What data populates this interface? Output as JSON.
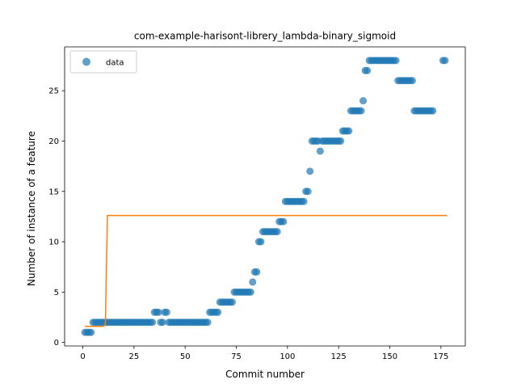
{
  "chart_data": {
    "type": "scatter",
    "title": "com-example-harisont-librery_lambda-binary_sigmoid",
    "xlabel": "Commit number",
    "ylabel": "Number of instance of a feature",
    "xlim": [
      -8.9,
      186.9
    ],
    "ylim": [
      -0.35,
      29.35
    ],
    "xticks": [
      0,
      25,
      50,
      75,
      100,
      125,
      150,
      175
    ],
    "yticks": [
      0,
      5,
      10,
      15,
      20,
      25
    ],
    "grid": false,
    "legend": {
      "position": "top-left",
      "entries": [
        "data"
      ]
    },
    "colors": {
      "scatter": "#1f77b4",
      "fit": "#ff7f0e"
    },
    "series": [
      {
        "name": "data",
        "kind": "scatter",
        "points": [
          [
            1,
            1
          ],
          [
            2,
            1
          ],
          [
            3,
            1
          ],
          [
            4,
            1
          ],
          [
            5,
            2
          ],
          [
            6,
            2
          ],
          [
            7,
            2
          ],
          [
            8,
            2
          ],
          [
            9,
            2
          ],
          [
            10,
            2
          ],
          [
            11,
            2
          ],
          [
            12,
            2
          ],
          [
            13,
            2
          ],
          [
            14,
            2
          ],
          [
            15,
            2
          ],
          [
            16,
            2
          ],
          [
            17,
            2
          ],
          [
            18,
            2
          ],
          [
            19,
            2
          ],
          [
            20,
            2
          ],
          [
            21,
            2
          ],
          [
            22,
            2
          ],
          [
            23,
            2
          ],
          [
            24,
            2
          ],
          [
            25,
            2
          ],
          [
            26,
            2
          ],
          [
            27,
            2
          ],
          [
            28,
            2
          ],
          [
            29,
            2
          ],
          [
            30,
            2
          ],
          [
            31,
            2
          ],
          [
            32,
            2
          ],
          [
            33,
            2
          ],
          [
            34,
            2
          ],
          [
            35,
            3
          ],
          [
            36,
            3
          ],
          [
            37,
            3
          ],
          [
            38,
            2
          ],
          [
            39,
            2
          ],
          [
            40,
            3
          ],
          [
            41,
            3
          ],
          [
            42,
            2
          ],
          [
            43,
            2
          ],
          [
            44,
            2
          ],
          [
            45,
            2
          ],
          [
            46,
            2
          ],
          [
            47,
            2
          ],
          [
            48,
            2
          ],
          [
            49,
            2
          ],
          [
            50,
            2
          ],
          [
            51,
            2
          ],
          [
            52,
            2
          ],
          [
            53,
            2
          ],
          [
            54,
            2
          ],
          [
            55,
            2
          ],
          [
            56,
            2
          ],
          [
            57,
            2
          ],
          [
            58,
            2
          ],
          [
            59,
            2
          ],
          [
            60,
            2
          ],
          [
            61,
            2
          ],
          [
            62,
            3
          ],
          [
            63,
            3
          ],
          [
            64,
            3
          ],
          [
            65,
            3
          ],
          [
            66,
            3
          ],
          [
            67,
            4
          ],
          [
            68,
            4
          ],
          [
            69,
            4
          ],
          [
            70,
            4
          ],
          [
            71,
            4
          ],
          [
            72,
            4
          ],
          [
            73,
            4
          ],
          [
            74,
            5
          ],
          [
            75,
            5
          ],
          [
            76,
            5
          ],
          [
            77,
            5
          ],
          [
            78,
            5
          ],
          [
            79,
            5
          ],
          [
            80,
            5
          ],
          [
            81,
            5
          ],
          [
            82,
            5
          ],
          [
            83,
            6
          ],
          [
            84,
            7
          ],
          [
            85,
            7
          ],
          [
            86,
            10
          ],
          [
            87,
            10
          ],
          [
            88,
            11
          ],
          [
            89,
            11
          ],
          [
            90,
            11
          ],
          [
            91,
            11
          ],
          [
            92,
            11
          ],
          [
            93,
            11
          ],
          [
            94,
            11
          ],
          [
            95,
            11
          ],
          [
            96,
            12
          ],
          [
            97,
            12
          ],
          [
            98,
            12
          ],
          [
            99,
            14
          ],
          [
            100,
            14
          ],
          [
            101,
            14
          ],
          [
            102,
            14
          ],
          [
            103,
            14
          ],
          [
            104,
            14
          ],
          [
            105,
            14
          ],
          [
            106,
            14
          ],
          [
            107,
            14
          ],
          [
            108,
            14
          ],
          [
            109,
            15
          ],
          [
            110,
            15
          ],
          [
            111,
            17
          ],
          [
            112,
            20
          ],
          [
            113,
            20
          ],
          [
            114,
            20
          ],
          [
            115,
            20
          ],
          [
            116,
            19
          ],
          [
            117,
            20
          ],
          [
            118,
            20
          ],
          [
            119,
            20
          ],
          [
            120,
            20
          ],
          [
            121,
            20
          ],
          [
            122,
            20
          ],
          [
            123,
            20
          ],
          [
            124,
            20
          ],
          [
            125,
            20
          ],
          [
            126,
            20
          ],
          [
            127,
            21
          ],
          [
            128,
            21
          ],
          [
            129,
            21
          ],
          [
            130,
            21
          ],
          [
            131,
            23
          ],
          [
            132,
            23
          ],
          [
            133,
            23
          ],
          [
            134,
            23
          ],
          [
            135,
            23
          ],
          [
            136,
            23
          ],
          [
            137,
            24
          ],
          [
            138,
            27
          ],
          [
            139,
            27
          ],
          [
            140,
            28
          ],
          [
            141,
            28
          ],
          [
            142,
            28
          ],
          [
            143,
            28
          ],
          [
            144,
            28
          ],
          [
            145,
            28
          ],
          [
            146,
            28
          ],
          [
            147,
            28
          ],
          [
            148,
            28
          ],
          [
            149,
            28
          ],
          [
            150,
            28
          ],
          [
            151,
            28
          ],
          [
            152,
            28
          ],
          [
            153,
            28
          ],
          [
            154,
            26
          ],
          [
            155,
            26
          ],
          [
            156,
            26
          ],
          [
            157,
            26
          ],
          [
            158,
            26
          ],
          [
            159,
            26
          ],
          [
            160,
            26
          ],
          [
            161,
            26
          ],
          [
            162,
            23
          ],
          [
            163,
            23
          ],
          [
            164,
            23
          ],
          [
            165,
            23
          ],
          [
            166,
            23
          ],
          [
            167,
            23
          ],
          [
            168,
            23
          ],
          [
            169,
            23
          ],
          [
            170,
            23
          ],
          [
            171,
            23
          ],
          [
            176,
            28
          ],
          [
            177,
            28
          ]
        ]
      },
      {
        "name": "",
        "kind": "line",
        "points": [
          [
            1,
            1.6
          ],
          [
            10,
            1.6
          ],
          [
            11,
            1.8
          ],
          [
            12,
            12.6
          ],
          [
            178,
            12.6
          ]
        ]
      }
    ]
  }
}
